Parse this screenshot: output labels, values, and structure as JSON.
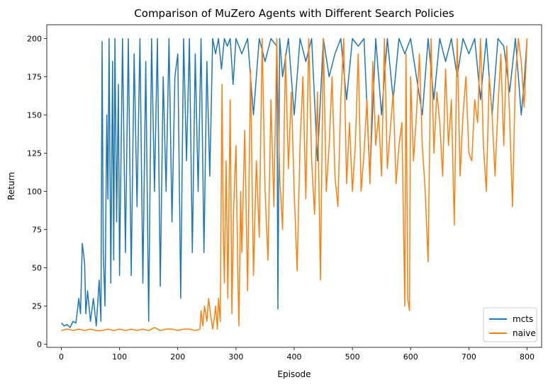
{
  "chart_data": {
    "type": "line",
    "title": "Comparison of MuZero Agents with Different Search Policies",
    "xlabel": "Episode",
    "ylabel": "Return",
    "xlim": [
      -25,
      825
    ],
    "ylim": [
      -2,
      209
    ],
    "xticks": [
      0,
      100,
      200,
      300,
      400,
      500,
      600,
      700,
      800
    ],
    "yticks": [
      0,
      25,
      50,
      75,
      100,
      125,
      150,
      175,
      200
    ],
    "grid": false,
    "legend_position": "lower-right",
    "colors": {
      "mcts": "#1f77b4",
      "naive": "#ff7f0e"
    },
    "series": [
      {
        "name": "mcts",
        "x": [
          0,
          5,
          10,
          15,
          20,
          25,
          30,
          33,
          36,
          40,
          42,
          45,
          50,
          55,
          60,
          65,
          68,
          70,
          72,
          75,
          78,
          80,
          82,
          85,
          88,
          90,
          92,
          95,
          98,
          100,
          105,
          110,
          115,
          120,
          125,
          130,
          135,
          140,
          145,
          150,
          155,
          160,
          165,
          170,
          175,
          180,
          185,
          190,
          195,
          200,
          205,
          210,
          215,
          220,
          225,
          230,
          235,
          240,
          245,
          250,
          255,
          260,
          265,
          270,
          275,
          280,
          285,
          290,
          295,
          300,
          310,
          320,
          330,
          340,
          350,
          360,
          370,
          372,
          375,
          380,
          390,
          400,
          410,
          420,
          430,
          440,
          450,
          460,
          470,
          480,
          490,
          500,
          510,
          520,
          530,
          540,
          550,
          560,
          570,
          580,
          590,
          600,
          610,
          620,
          630,
          640,
          650,
          660,
          670,
          680,
          690,
          700,
          710,
          720,
          730,
          740,
          750,
          760,
          770,
          780,
          790,
          795,
          800
        ],
        "y": [
          14,
          12,
          13,
          11,
          15,
          14,
          30,
          20,
          66,
          53,
          20,
          35,
          15,
          30,
          12,
          42,
          15,
          198,
          60,
          25,
          150,
          95,
          200,
          40,
          185,
          55,
          200,
          80,
          170,
          45,
          200,
          60,
          200,
          45,
          190,
          90,
          200,
          40,
          185,
          15,
          200,
          100,
          200,
          38,
          175,
          100,
          200,
          80,
          175,
          190,
          30,
          200,
          120,
          200,
          60,
          190,
          100,
          200,
          60,
          185,
          110,
          200,
          190,
          200,
          180,
          200,
          195,
          200,
          170,
          200,
          190,
          200,
          150,
          200,
          185,
          200,
          195,
          23,
          200,
          175,
          200,
          150,
          200,
          185,
          200,
          120,
          200,
          175,
          190,
          200,
          160,
          200,
          195,
          200,
          110,
          200,
          150,
          200,
          160,
          200,
          190,
          200,
          175,
          150,
          200,
          160,
          200,
          185,
          200,
          175,
          200,
          190,
          200,
          160,
          200,
          150,
          200,
          195,
          165,
          200,
          150,
          172,
          200
        ]
      },
      {
        "name": "naive",
        "x": [
          0,
          10,
          20,
          30,
          40,
          50,
          60,
          70,
          80,
          90,
          100,
          110,
          120,
          130,
          140,
          150,
          160,
          170,
          180,
          190,
          200,
          210,
          220,
          230,
          238,
          240,
          243,
          246,
          250,
          253,
          256,
          260,
          263,
          265,
          268,
          270,
          273,
          276,
          278,
          280,
          283,
          286,
          290,
          293,
          296,
          300,
          303,
          305,
          308,
          310,
          315,
          320,
          325,
          330,
          335,
          340,
          345,
          350,
          355,
          360,
          365,
          370,
          375,
          380,
          385,
          390,
          395,
          400,
          405,
          410,
          415,
          420,
          425,
          430,
          435,
          440,
          445,
          450,
          455,
          460,
          465,
          470,
          475,
          480,
          485,
          490,
          495,
          500,
          505,
          510,
          515,
          520,
          525,
          530,
          535,
          540,
          545,
          550,
          555,
          560,
          565,
          570,
          575,
          580,
          585,
          590,
          592,
          595,
          598,
          600,
          605,
          610,
          615,
          620,
          625,
          630,
          635,
          640,
          645,
          650,
          655,
          660,
          665,
          670,
          675,
          680,
          685,
          690,
          695,
          700,
          705,
          710,
          715,
          720,
          725,
          730,
          735,
          740,
          745,
          750,
          755,
          760,
          765,
          770,
          775,
          780,
          785,
          790,
          795,
          800
        ],
        "y": [
          9,
          10,
          9,
          10,
          9,
          10,
          9,
          9,
          10,
          9,
          10,
          9,
          10,
          9,
          10,
          9,
          11,
          9,
          10,
          10,
          9,
          10,
          10,
          9,
          10,
          22,
          12,
          25,
          15,
          30,
          20,
          10,
          18,
          25,
          10,
          30,
          15,
          170,
          80,
          40,
          120,
          30,
          160,
          20,
          90,
          130,
          50,
          12,
          100,
          60,
          140,
          35,
          180,
          45,
          120,
          70,
          200,
          100,
          55,
          160,
          90,
          200,
          110,
          75,
          190,
          115,
          165,
          100,
          48,
          130,
          175,
          95,
          200,
          120,
          85,
          165,
          42,
          200,
          100,
          130,
          175,
          110,
          90,
          160,
          200,
          105,
          145,
          100,
          130,
          190,
          100,
          125,
          160,
          105,
          185,
          130,
          150,
          110,
          200,
          115,
          140,
          165,
          105,
          130,
          145,
          25,
          190,
          30,
          22,
          175,
          120,
          150,
          190,
          130,
          100,
          54,
          200,
          125,
          165,
          145,
          110,
          180,
          130,
          160,
          78,
          200,
          110,
          150,
          175,
          125,
          120,
          160,
          145,
          200,
          130,
          100,
          175,
          150,
          110,
          155,
          190,
          130,
          195,
          150,
          90,
          175,
          200,
          185,
          155,
          200
        ]
      }
    ]
  }
}
